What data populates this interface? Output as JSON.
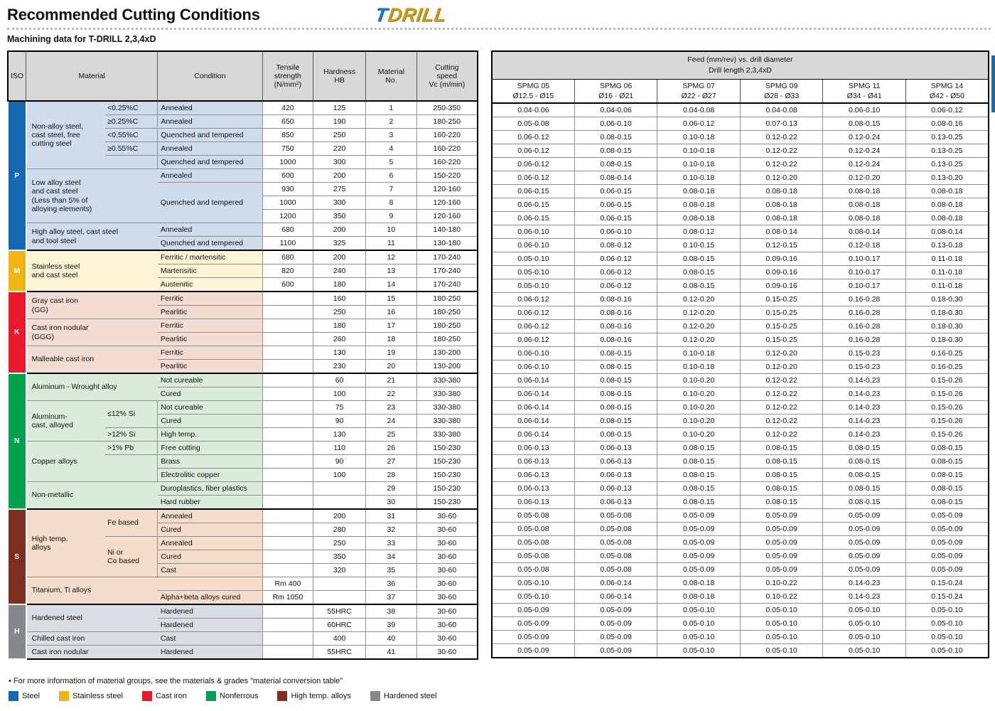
{
  "page": {
    "title": "Recommended Cutting Conditions",
    "subtitle": "Machining data for T-DRILL 2,3,4xD",
    "logo": {
      "part1": "T",
      "part2": "DRILL"
    },
    "footnote": "• For more information of material groups, see the materials & grades \"material conversion table\""
  },
  "materials_table": {
    "headers": {
      "iso": "ISO",
      "material": "Material",
      "condition": "Condition",
      "tensile": "Tensile\nstrength\n(N/mm²)",
      "hardness": "Hardness\nHB",
      "material_no": "Material\nNo.",
      "speed": "Cutting\nspeed\nVc (m/min)"
    },
    "groups": [
      {
        "iso": "P",
        "badge_color": "#1668b2",
        "tint": "#cfdcee",
        "blocks": [
          {
            "material": "Non-alloy steel,\ncast steel, free\ncutting steel",
            "specs": [
              {
                "t": "<0.25%C",
                "s": 1
              },
              {
                "t": "≥0.25%C",
                "s": 1
              },
              {
                "t": "<0.55%C",
                "s": 1
              },
              {
                "t": "≥0.55%C",
                "s": 1
              },
              {
                "t": "",
                "s": 1
              }
            ],
            "rows": [
              {
                "cond": "Annealed",
                "ten": "420",
                "hb": "125",
                "no": "1",
                "vc": "250-350"
              },
              {
                "cond": "Annealed",
                "ten": "650",
                "hb": "190",
                "no": "2",
                "vc": "180-250"
              },
              {
                "cond": "Quenched and tempered",
                "ten": "850",
                "hb": "250",
                "no": "3",
                "vc": "160-220"
              },
              {
                "cond": "Annealed",
                "ten": "750",
                "hb": "220",
                "no": "4",
                "vc": "160-220"
              },
              {
                "cond": "Quenched and tempered",
                "ten": "1000",
                "hb": "300",
                "no": "5",
                "vc": "160-220"
              }
            ]
          },
          {
            "material": "Low alloy steel\nand cast steel\n(Less than 5% of\nalloying elements)",
            "specs": null,
            "rows": [
              {
                "cond": "Annealed",
                "ten": "600",
                "hb": "200",
                "no": "6",
                "vc": "150-220"
              },
              {
                "cond": "Quenched and tempered",
                "cspan": 3,
                "ten": "930",
                "hb": "275",
                "no": "7",
                "vc": "120-160"
              },
              {
                "cmerge": true,
                "ten": "1000",
                "hb": "300",
                "no": "8",
                "vc": "120-160"
              },
              {
                "cmerge": true,
                "ten": "1200",
                "hb": "350",
                "no": "9",
                "vc": "120-160"
              }
            ]
          },
          {
            "material": "High alloy steel, cast steel\nand tool steel",
            "specs": null,
            "rows": [
              {
                "cond": "Annealed",
                "ten": "680",
                "hb": "200",
                "no": "10",
                "vc": "140-180"
              },
              {
                "cond": "Quenched and tempered",
                "ten": "1100",
                "hb": "325",
                "no": "11",
                "vc": "130-180"
              }
            ]
          }
        ]
      },
      {
        "iso": "M",
        "badge_color": "#f0b414",
        "tint": "#fdf3d5",
        "blocks": [
          {
            "material": "Stainless steel\nand cast steel",
            "specs": null,
            "rows": [
              {
                "cond": "Ferritic / martensitic",
                "ten": "680",
                "hb": "200",
                "no": "12",
                "vc": "170-240"
              },
              {
                "cond": "Martensitic",
                "ten": "820",
                "hb": "240",
                "no": "13",
                "vc": "170-240"
              },
              {
                "cond": "Austenitic",
                "ten": "600",
                "hb": "180",
                "no": "14",
                "vc": "170-240"
              }
            ]
          }
        ]
      },
      {
        "iso": "K",
        "badge_color": "#e8192d",
        "tint": "#f3ddd2",
        "blocks": [
          {
            "material": "Gray cast iron\n(GG)",
            "specs": null,
            "rows": [
              {
                "cond": "Ferritic",
                "ten": "",
                "hb": "160",
                "no": "15",
                "vc": "180-250"
              },
              {
                "cond": "Pearlitic",
                "ten": "",
                "hb": "250",
                "no": "16",
                "vc": "180-250"
              }
            ]
          },
          {
            "material": "Cast iron nodular\n(GGG)",
            "specs": null,
            "rows": [
              {
                "cond": "Ferritic",
                "ten": "",
                "hb": "180",
                "no": "17",
                "vc": "180-250"
              },
              {
                "cond": "Pearlitic",
                "ten": "",
                "hb": "260",
                "no": "18",
                "vc": "180-250"
              }
            ]
          },
          {
            "material": "Malleable cast iron",
            "specs": null,
            "rows": [
              {
                "cond": "Ferritic",
                "ten": "",
                "hb": "130",
                "no": "19",
                "vc": "130-200"
              },
              {
                "cond": "Pearlitic",
                "ten": "",
                "hb": "230",
                "no": "20",
                "vc": "130-200"
              }
            ]
          }
        ]
      },
      {
        "iso": "N",
        "badge_color": "#00a14e",
        "tint": "#d9ecdb",
        "blocks": [
          {
            "material": "Aluminum - Wrought alloy",
            "specs": null,
            "rows": [
              {
                "cond": "Not cureable",
                "ten": "",
                "hb": "60",
                "no": "21",
                "vc": "330-380"
              },
              {
                "cond": "Cured",
                "ten": "",
                "hb": "100",
                "no": "22",
                "vc": "330-380"
              }
            ]
          },
          {
            "material": "Aluminum-\ncast, alloyed",
            "specs": [
              {
                "t": "≤12% Si",
                "s": 2
              },
              {
                "t": ">12% Si",
                "s": 1
              }
            ],
            "rows": [
              {
                "cond": "Not cureable",
                "ten": "",
                "hb": "75",
                "no": "23",
                "vc": "330-380"
              },
              {
                "cond": "Cured",
                "ten": "",
                "hb": "90",
                "no": "24",
                "vc": "330-380"
              },
              {
                "cond": "High temp.",
                "ten": "",
                "hb": "130",
                "no": "25",
                "vc": "330-380"
              }
            ]
          },
          {
            "material": "Copper alloys",
            "specs": [
              {
                "t": ">1% Pb",
                "s": 1
              },
              {
                "t": "",
                "s": 2
              }
            ],
            "rows": [
              {
                "cond": "Free cutting",
                "ten": "",
                "hb": "110",
                "no": "26",
                "vc": "150-230"
              },
              {
                "cond": "Brass",
                "ten": "",
                "hb": "90",
                "no": "27",
                "vc": "150-230"
              },
              {
                "cond": "Electrolitic copper",
                "ten": "",
                "hb": "100",
                "no": "28",
                "vc": "150-230"
              }
            ]
          },
          {
            "material": "Non-metallic",
            "specs": null,
            "rows": [
              {
                "cond": "Duroplastics, fiber plastics",
                "ten": "",
                "hb": "",
                "no": "29",
                "vc": "150-230"
              },
              {
                "cond": "Hard rubber",
                "ten": "",
                "hb": "",
                "no": "30",
                "vc": "150-230"
              }
            ]
          }
        ]
      },
      {
        "iso": "S",
        "badge_color": "#7d2e1f",
        "tint": "#f3dcca",
        "blocks": [
          {
            "material": "High temp.\nalloys",
            "specs": [
              {
                "t": "Fe based",
                "s": 2
              },
              {
                "t": "Ni or\nCo based",
                "s": 3
              }
            ],
            "rows": [
              {
                "cond": "Annealed",
                "ten": "",
                "hb": "200",
                "no": "31",
                "vc": "30-60"
              },
              {
                "cond": "Cured",
                "ten": "",
                "hb": "280",
                "no": "32",
                "vc": "30-60"
              },
              {
                "cond": "Annealed",
                "ten": "",
                "hb": "250",
                "no": "33",
                "vc": "30-60"
              },
              {
                "cond": "Cured",
                "ten": "",
                "hb": "350",
                "no": "34",
                "vc": "30-60"
              },
              {
                "cond": "Cast",
                "ten": "",
                "hb": "320",
                "no": "35",
                "vc": "30-60"
              }
            ]
          },
          {
            "material": "Titanium, Ti alloys",
            "specs": null,
            "rows": [
              {
                "cond": "",
                "ten": "Rm 400",
                "hb": "",
                "no": "36",
                "vc": "30-60"
              },
              {
                "cond": "Alpha+beta alloys cured",
                "ten": "Rm 1050",
                "hb": "",
                "no": "37",
                "vc": "30-60"
              }
            ]
          }
        ]
      },
      {
        "iso": "H",
        "badge_color": "#85888b",
        "tint": "#d9dde4",
        "blocks": [
          {
            "material": "Hardened steel",
            "specs": null,
            "rows": [
              {
                "cond": "Hardened",
                "ten": "",
                "hb": "55HRC",
                "no": "38",
                "vc": "30-60"
              },
              {
                "cond": "Hardened",
                "ten": "",
                "hb": "60HRC",
                "no": "39",
                "vc": "30-60"
              }
            ]
          },
          {
            "material": "Chilled cast iron",
            "specs": null,
            "rows": [
              {
                "cond": "Cast",
                "ten": "",
                "hb": "400",
                "no": "40",
                "vc": "30-60"
              }
            ]
          },
          {
            "material": "Cast iron nodular",
            "specs": null,
            "rows": [
              {
                "cond": "Hardened",
                "ten": "",
                "hb": "55HRC",
                "no": "41",
                "vc": "30-60"
              }
            ]
          }
        ]
      }
    ]
  },
  "feed_table": {
    "title_line1": "Feed (mm/rev) vs. drill diameter",
    "title_line2": "Drill length 2,3,4xD",
    "columns": [
      {
        "insert": "SPMG 05",
        "range": "Ø12.5 - Ø15"
      },
      {
        "insert": "SPMG 06",
        "range": "Ø16 - Ø21"
      },
      {
        "insert": "SPMG 07",
        "range": "Ø22 - Ø27"
      },
      {
        "insert": "SPMG 09",
        "range": "Ø28 - Ø33"
      },
      {
        "insert": "SPMG 11",
        "range": "Ø34 - Ø41"
      },
      {
        "insert": "SPMG 14",
        "range": "Ø42 - Ø50"
      }
    ],
    "group_sizes": [
      11,
      3,
      6,
      10,
      7,
      4
    ],
    "rows": [
      [
        "0.04-0.06",
        "0.04-0.06",
        "0.04-0.08",
        "0.04-0.08",
        "0.06-0.10",
        "0.06-0.12"
      ],
      [
        "0.05-0.08",
        "0.06-0.10",
        "0.06-0.12",
        "0.07-0.13",
        "0.08-0.15",
        "0.08-0.16"
      ],
      [
        "0.06-0.12",
        "0.08-0.15",
        "0.10-0.18",
        "0.12-0.22",
        "0.12-0.24",
        "0.13-0.25"
      ],
      [
        "0.06-0.12",
        "0.08-0.15",
        "0.10-0.18",
        "0.12-0.22",
        "0.12-0.24",
        "0.13-0.25"
      ],
      [
        "0.06-0.12",
        "0.08-0.15",
        "0.10-0.18",
        "0.12-0.22",
        "0.12-0.24",
        "0.13-0.25"
      ],
      [
        "0.06-0.12",
        "0.08-0.14",
        "0.10-0.18",
        "0.12-0.20",
        "0.12-0.20",
        "0.13-0.20"
      ],
      [
        "0.06-0.15",
        "0.06-0.15",
        "0.08-0.18",
        "0.08-0.18",
        "0.08-0.18",
        "0.08-0.18"
      ],
      [
        "0.06-0.15",
        "0.06-0.15",
        "0.08-0.18",
        "0.08-0.18",
        "0.08-0.18",
        "0.08-0.18"
      ],
      [
        "0.06-0.15",
        "0.06-0.15",
        "0.08-0.18",
        "0.08-0.18",
        "0.08-0.18",
        "0.08-0.18"
      ],
      [
        "0.06-0.10",
        "0.06-0.10",
        "0.08-0.12",
        "0.08-0.14",
        "0.08-0.14",
        "0.08-0.14"
      ],
      [
        "0.06-0.10",
        "0.08-0.12",
        "0.10-0.15",
        "0.12-0.15",
        "0.12-0.18",
        "0.13-0.18"
      ],
      [
        "0.05-0.10",
        "0.06-0.12",
        "0.08-0.15",
        "0.09-0.16",
        "0.10-0.17",
        "0.11-0.18"
      ],
      [
        "0.05-0.10",
        "0.06-0.12",
        "0.08-0.15",
        "0.09-0.16",
        "0.10-0.17",
        "0.11-0.18"
      ],
      [
        "0.05-0.10",
        "0.06-0.12",
        "0.08-0.15",
        "0.09-0.16",
        "0.10-0.17",
        "0.11-0.18"
      ],
      [
        "0.06-0.12",
        "0.08-0.16",
        "0.12-0.20",
        "0.15-0.25",
        "0.16-0.28",
        "0.18-0.30"
      ],
      [
        "0.06-0.12",
        "0.08-0.16",
        "0.12-0.20",
        "0.15-0.25",
        "0.16-0.28",
        "0.18-0.30"
      ],
      [
        "0.06-0.12",
        "0.08-0.16",
        "0.12-0.20",
        "0.15-0.25",
        "0.16-0.28",
        "0.18-0.30"
      ],
      [
        "0.06-0.12",
        "0.08-0.16",
        "0.12-0.20",
        "0.15-0.25",
        "0.16-0.28",
        "0.18-0.30"
      ],
      [
        "0.06-0.10",
        "0.08-0.15",
        "0.10-0.18",
        "0.12-0.20",
        "0.15-0.23",
        "0.16-0.25"
      ],
      [
        "0.06-0.10",
        "0.08-0.15",
        "0.10-0.18",
        "0.12-0.20",
        "0.15-0.23",
        "0.16-0.25"
      ],
      [
        "0.06-0.14",
        "0.08-0.15",
        "0.10-0.20",
        "0.12-0.22",
        "0.14-0.23",
        "0.15-0.26"
      ],
      [
        "0.06-0.14",
        "0.08-0.15",
        "0.10-0.20",
        "0.12-0.22",
        "0.14-0.23",
        "0.15-0.26"
      ],
      [
        "0.06-0.14",
        "0.08-0.15",
        "0.10-0.20",
        "0.12-0.22",
        "0.14-0.23",
        "0.15-0.26"
      ],
      [
        "0.06-0.14",
        "0.08-0.15",
        "0.10-0.20",
        "0.12-0.22",
        "0.14-0.23",
        "0.15-0.26"
      ],
      [
        "0.06-0.14",
        "0.08-0.15",
        "0.10-0.20",
        "0.12-0.22",
        "0.14-0.23",
        "0.15-0.26"
      ],
      [
        "0.06-0.13",
        "0.06-0.13",
        "0.08-0.15",
        "0.08-0.15",
        "0.08-0.15",
        "0.08-0.15"
      ],
      [
        "0.06-0.13",
        "0.06-0.13",
        "0.08-0.15",
        "0.08-0.15",
        "0.08-0.15",
        "0.08-0.15"
      ],
      [
        "0.06-0.13",
        "0.06-0.13",
        "0.08-0.15",
        "0.08-0.15",
        "0.08-0.15",
        "0.08-0.15"
      ],
      [
        "0.06-0.13",
        "0.06-0.13",
        "0.08-0.15",
        "0.08-0.15",
        "0.08-0.15",
        "0.08-0.15"
      ],
      [
        "0.06-0.13",
        "0.06-0.13",
        "0.08-0.15",
        "0.08-0.15",
        "0.08-0.15",
        "0.08-0.15"
      ],
      [
        "0.05-0.08",
        "0.05-0.08",
        "0.05-0.09",
        "0.05-0.09",
        "0.05-0.09",
        "0.05-0.09"
      ],
      [
        "0.05-0.08",
        "0.05-0.08",
        "0.05-0.09",
        "0.05-0.09",
        "0.05-0.09",
        "0.05-0.09"
      ],
      [
        "0.05-0.08",
        "0.05-0.08",
        "0.05-0.09",
        "0.05-0.09",
        "0.05-0.09",
        "0.05-0.09"
      ],
      [
        "0.05-0.08",
        "0.05-0.08",
        "0.05-0.09",
        "0.05-0.09",
        "0.05-0.09",
        "0.05-0.09"
      ],
      [
        "0.05-0.08",
        "0.05-0.08",
        "0.05-0.09",
        "0.05-0.09",
        "0.05-0.09",
        "0.05-0.09"
      ],
      [
        "0.05-0.10",
        "0.06-0.14",
        "0.08-0.18",
        "0.10-0.22",
        "0.14-0.23",
        "0.15-0.24"
      ],
      [
        "0.05-0.10",
        "0.06-0.14",
        "0.08-0.18",
        "0.10-0.22",
        "0.14-0.23",
        "0.15-0.24"
      ],
      [
        "0.05-0.09",
        "0.05-0.09",
        "0.05-0.10",
        "0.05-0.10",
        "0.05-0.10",
        "0.05-0.10"
      ],
      [
        "0.05-0.09",
        "0.05-0.09",
        "0.05-0.10",
        "0.05-0.10",
        "0.05-0.10",
        "0.05-0.10"
      ],
      [
        "0.05-0.09",
        "0.05-0.09",
        "0.05-0.10",
        "0.05-0.10",
        "0.05-0.10",
        "0.05-0.10"
      ],
      [
        "0.05-0.09",
        "0.05-0.09",
        "0.05-0.10",
        "0.05-0.10",
        "0.05-0.10",
        "0.05-0.10"
      ]
    ]
  },
  "legend": [
    {
      "label": "Steel",
      "color": "#1668b2"
    },
    {
      "label": "Stainless steel",
      "color": "#f0b414"
    },
    {
      "label": "Cast iron",
      "color": "#e8192d"
    },
    {
      "label": "Nonferrous",
      "color": "#00a14e"
    },
    {
      "label": "High temp. alloys",
      "color": "#7d2e1f"
    },
    {
      "label": "Hardened steel",
      "color": "#85888b"
    }
  ]
}
